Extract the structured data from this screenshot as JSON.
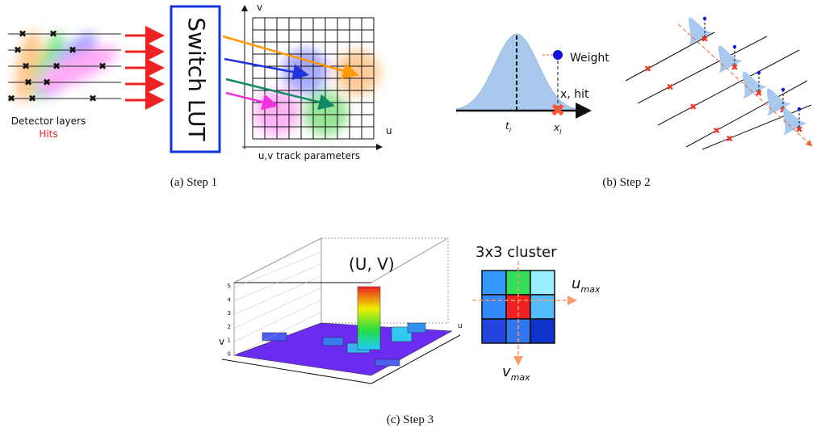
{
  "step1": {
    "detector_label": "Detector layers",
    "hits_label": "Hits",
    "lut_label": "Switch LUT",
    "axis_v": "v",
    "axis_u": "u",
    "param_label": "u,v track parameters",
    "caption": "(a) Step 1"
  },
  "step2": {
    "weight_label": "Weight",
    "x_label": "x, hit",
    "t_label": "t",
    "t_sub": "l",
    "x_hit_label": "x",
    "x_sub": "l",
    "caption": "(b) Step 2"
  },
  "step3": {
    "peak_label": "(U, V)",
    "zticks": [
      0,
      1,
      2,
      3,
      4,
      5
    ],
    "axis_v": "v",
    "axis_u": "u",
    "cluster_label": "3x3 cluster",
    "u_max": "u",
    "u_sub": "max",
    "v_max": "v",
    "v_sub": "max",
    "caption": "(c) Step 3"
  }
}
